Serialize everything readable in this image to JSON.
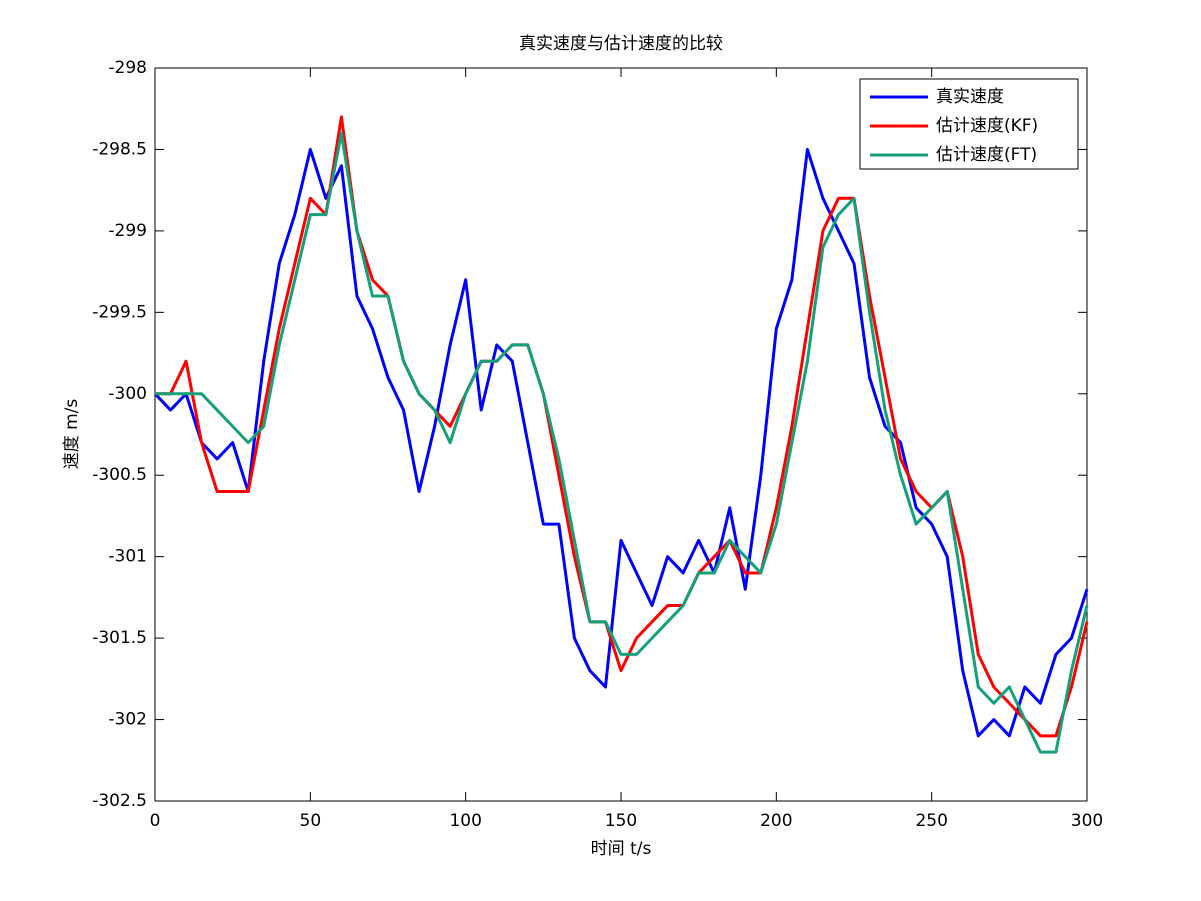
{
  "chart_data": {
    "type": "line",
    "title": "真实速度与估计速度的比较",
    "x_label": "时间 t/s",
    "y_label": "速度 m/s",
    "x": [
      0,
      5,
      10,
      15,
      20,
      25,
      30,
      35,
      40,
      45,
      50,
      55,
      60,
      65,
      70,
      75,
      80,
      85,
      90,
      95,
      100,
      105,
      110,
      115,
      120,
      125,
      130,
      135,
      140,
      145,
      150,
      155,
      160,
      165,
      170,
      175,
      180,
      185,
      190,
      195,
      200,
      205,
      210,
      215,
      220,
      225,
      230,
      235,
      240,
      245,
      250,
      255,
      260,
      265,
      270,
      275,
      280,
      285,
      290,
      295,
      300
    ],
    "series": [
      {
        "name": "真实速度",
        "color": "#0000ff",
        "values": [
          -300.0,
          -300.1,
          -300.0,
          -300.3,
          -300.4,
          -300.3,
          -300.6,
          -299.8,
          -299.2,
          -298.9,
          -298.5,
          -298.8,
          -298.6,
          -299.4,
          -299.6,
          -299.9,
          -300.1,
          -300.6,
          -300.2,
          -299.7,
          -299.3,
          -300.1,
          -299.7,
          -299.8,
          -300.3,
          -300.8,
          -300.8,
          -301.5,
          -301.7,
          -301.8,
          -300.9,
          -301.1,
          -301.3,
          -301.0,
          -301.1,
          -300.9,
          -301.1,
          -300.7,
          -301.2,
          -300.5,
          -299.6,
          -299.3,
          -298.5,
          -298.8,
          -299.0,
          -299.2,
          -299.9,
          -300.2,
          -300.3,
          -300.7,
          -300.8,
          -301.0,
          -301.7,
          -302.1,
          -302.0,
          -302.1,
          -301.8,
          -301.9,
          -301.6,
          -301.5,
          -301.2
        ]
      },
      {
        "name": "估计速度(KF)",
        "color": "#ff0000",
        "values": [
          -300.0,
          -300.0,
          -299.8,
          -300.3,
          -300.6,
          -300.6,
          -300.6,
          -300.1,
          -299.6,
          -299.2,
          -298.8,
          -298.9,
          -298.3,
          -299.0,
          -299.3,
          -299.4,
          -299.8,
          -300.0,
          -300.1,
          -300.2,
          -300.0,
          -299.8,
          -299.8,
          -299.7,
          -299.7,
          -300.0,
          -300.5,
          -301.0,
          -301.4,
          -301.4,
          -301.7,
          -301.5,
          -301.4,
          -301.3,
          -301.3,
          -301.1,
          -301.0,
          -300.9,
          -301.1,
          -301.1,
          -300.7,
          -300.2,
          -299.6,
          -299.0,
          -298.8,
          -298.8,
          -299.4,
          -299.9,
          -300.4,
          -300.6,
          -300.7,
          -300.6,
          -301.0,
          -301.6,
          -301.8,
          -301.9,
          -302.0,
          -302.1,
          -302.1,
          -301.8,
          -301.4
        ]
      },
      {
        "name": "估计速度(FT)",
        "color": "#13a07a",
        "values": [
          -300.0,
          -300.0,
          -300.0,
          -300.0,
          -300.1,
          -300.2,
          -300.3,
          -300.2,
          -299.7,
          -299.3,
          -298.9,
          -298.9,
          -298.4,
          -299.0,
          -299.4,
          -299.4,
          -299.8,
          -300.0,
          -300.1,
          -300.3,
          -300.0,
          -299.8,
          -299.8,
          -299.7,
          -299.7,
          -300.0,
          -300.4,
          -300.9,
          -301.4,
          -301.4,
          -301.6,
          -301.6,
          -301.5,
          -301.4,
          -301.3,
          -301.1,
          -301.1,
          -300.9,
          -301.0,
          -301.1,
          -300.8,
          -300.3,
          -299.8,
          -299.1,
          -298.9,
          -298.8,
          -299.5,
          -300.1,
          -300.5,
          -300.8,
          -300.7,
          -300.6,
          -301.2,
          -301.8,
          -301.9,
          -301.8,
          -302.0,
          -302.2,
          -302.2,
          -301.7,
          -301.3
        ]
      }
    ],
    "xlim": [
      0,
      300
    ],
    "xticks": [
      0,
      50,
      100,
      150,
      200,
      250,
      300
    ],
    "ylim": [
      -302.5,
      -298
    ],
    "yticks": [
      -302.5,
      -302,
      -301.5,
      -301,
      -300.5,
      -300,
      -299.5,
      -299,
      -298.5,
      -298
    ],
    "legend": "upper right"
  }
}
